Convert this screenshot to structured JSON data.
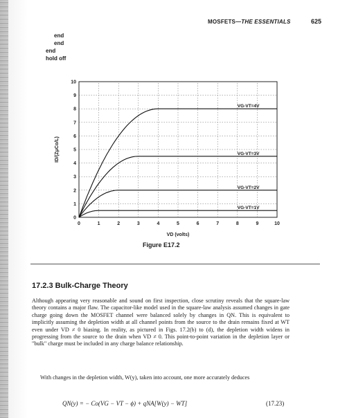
{
  "header": {
    "running_head_prefix": "MOSFETS—",
    "running_head_italic": "THE ESSENTIALS",
    "page_number": "625"
  },
  "code_lines": [
    "end",
    "end",
    "end",
    "hold off"
  ],
  "chart_data": {
    "type": "line",
    "ylabel": "ID/(ZμCo/L)",
    "xlabel": "VD (volts)",
    "xlim": [
      0,
      10
    ],
    "ylim": [
      0,
      10
    ],
    "xticks": [
      "0",
      "1",
      "2",
      "3",
      "4",
      "5",
      "6",
      "7",
      "8",
      "9",
      "10"
    ],
    "yticks": [
      "0",
      "1",
      "2",
      "3",
      "4",
      "5",
      "6",
      "7",
      "8",
      "9",
      "10"
    ],
    "grid": true,
    "series": [
      {
        "name": "VG-VT=4V",
        "saturation_vd": 4,
        "saturation_value": 8
      },
      {
        "name": "VG-VT=3V",
        "saturation_vd": 3,
        "saturation_value": 4.5
      },
      {
        "name": "VG-VT=2V",
        "saturation_vd": 2,
        "saturation_value": 2
      },
      {
        "name": "VG-VT=1V",
        "saturation_vd": 1,
        "saturation_value": 0.5
      }
    ]
  },
  "figure_caption": "Figure E17.2",
  "section_title": "17.2.3 Bulk-Charge Theory",
  "paragraph_1": "Although appearing very reasonable and sound on first inspection, close scrutiny reveals that the square-law theory contains a major flaw. The capacitor-like model used in the square-law analysis assumed changes in gate charge going down the MOSFET channel were balanced solely by changes in QN. This is equivalent to implicitly assuming the depletion width at all channel points from the source to the drain remains fixed at WT even under VD ≠ 0 biasing. In reality, as pictured in Figs. 17.2(b) to (d), the depletion width widens in progressing from the source to the drain when VD ≠ 0. This point-to-point variation in the depletion layer or \"bulk\" charge must be included in any charge balance relationship.",
  "paragraph_2": "With changes in the depletion width, W(y), taken into account, one more accurately deduces",
  "equation": "QN(y) = − Co(VG − VT − ϕ) + qNA[W(y) − WT]",
  "equation_number": "(17.23)"
}
